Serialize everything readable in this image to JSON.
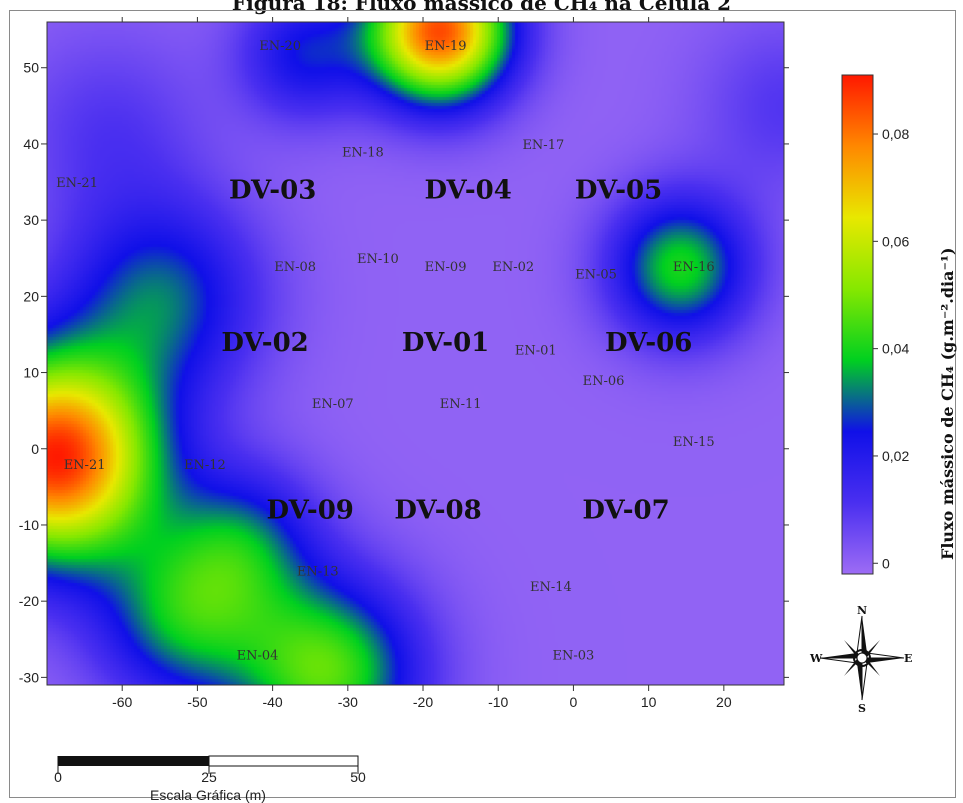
{
  "figure_title": "Figura 18: Fluxo mássico de CH₄ na Célula 2",
  "map": {
    "x_axis": {
      "ticks": [
        -60,
        -50,
        -40,
        -30,
        -20,
        -10,
        0,
        10,
        20
      ],
      "tick_labels": [
        "-60",
        "-50",
        "-40",
        "-30",
        "-20",
        "-10",
        "0",
        "10",
        "20"
      ]
    },
    "y_axis": {
      "ticks": [
        -30,
        -20,
        -10,
        0,
        10,
        20,
        30,
        40,
        50
      ],
      "tick_labels": [
        "-30",
        "-20",
        "-10",
        "0",
        "10",
        "20",
        "30",
        "40",
        "50"
      ]
    },
    "extent": {
      "x": [
        -70,
        28
      ],
      "y": [
        -31,
        56
      ]
    },
    "stations": [
      {
        "label": "EN-20",
        "x": -39,
        "y": 53
      },
      {
        "label": "EN-19",
        "x": -17,
        "y": 53
      },
      {
        "label": "EN-18",
        "x": -28,
        "y": 39
      },
      {
        "label": "EN-17",
        "x": -4,
        "y": 40
      },
      {
        "label": "EN-21",
        "x": -66,
        "y": 35
      },
      {
        "label": "EN-08",
        "x": -37,
        "y": 24
      },
      {
        "label": "EN-10",
        "x": -26,
        "y": 25
      },
      {
        "label": "EN-09",
        "x": -17,
        "y": 24
      },
      {
        "label": "EN-02",
        "x": -8,
        "y": 24
      },
      {
        "label": "EN-05",
        "x": 3,
        "y": 23
      },
      {
        "label": "EN-16",
        "x": 16,
        "y": 24
      },
      {
        "label": "EN-01",
        "x": -5,
        "y": 13
      },
      {
        "label": "EN-06",
        "x": 4,
        "y": 9
      },
      {
        "label": "EN-07",
        "x": -32,
        "y": 6
      },
      {
        "label": "EN-11",
        "x": -15,
        "y": 6
      },
      {
        "label": "EN-15",
        "x": 16,
        "y": 1
      },
      {
        "label": "EN-21",
        "x": -65,
        "y": -2
      },
      {
        "label": "EN-12",
        "x": -49,
        "y": -2
      },
      {
        "label": "EN-13",
        "x": -34,
        "y": -16
      },
      {
        "label": "EN-14",
        "x": -3,
        "y": -18
      },
      {
        "label": "EN-04",
        "x": -42,
        "y": -27
      },
      {
        "label": "EN-03",
        "x": 0,
        "y": -27
      }
    ],
    "zones": [
      {
        "label": "DV-03",
        "x": -40,
        "y": 34
      },
      {
        "label": "DV-04",
        "x": -14,
        "y": 34
      },
      {
        "label": "DV-05",
        "x": 6,
        "y": 34
      },
      {
        "label": "DV-02",
        "x": -41,
        "y": 14
      },
      {
        "label": "DV-01",
        "x": -17,
        "y": 14
      },
      {
        "label": "DV-06",
        "x": 10,
        "y": 14
      },
      {
        "label": "DV-09",
        "x": -35,
        "y": -8
      },
      {
        "label": "DV-08",
        "x": -18,
        "y": -8
      },
      {
        "label": "DV-07",
        "x": 7,
        "y": -8
      }
    ],
    "hotspots": [
      {
        "x": -69,
        "y": -1,
        "strength": 0.09,
        "spread": 9.5
      },
      {
        "x": -18,
        "y": 55,
        "strength": 0.085,
        "spread": 6.5
      },
      {
        "x": 14,
        "y": 24,
        "strength": 0.04,
        "spread": 6.5
      },
      {
        "x": -33,
        "y": -29,
        "strength": 0.046,
        "spread": 8.5
      },
      {
        "x": -55,
        "y": 20,
        "strength": 0.03,
        "spread": 9
      },
      {
        "x": -52,
        "y": -22,
        "strength": 0.034,
        "spread": 8
      },
      {
        "x": -36,
        "y": 52,
        "strength": 0.024,
        "spread": 6
      },
      {
        "x": -44,
        "y": -12,
        "strength": 0.026,
        "spread": 7
      },
      {
        "x": -62,
        "y": 42,
        "strength": 0.01,
        "spread": 9
      },
      {
        "x": 28,
        "y": 45,
        "strength": 0.01,
        "spread": 8
      }
    ]
  },
  "colorbar": {
    "title": "Fluxo mássico de CH₄ (g.m⁻².dia⁻¹)",
    "min": -0.002,
    "max": 0.091,
    "ticks": [
      0,
      0.02,
      0.04,
      0.06,
      0.08
    ],
    "tick_labels": [
      "0",
      "0,02",
      "0,04",
      "0,06",
      "0,08"
    ],
    "colors": [
      "#9d6cf5",
      "#4a2ff0",
      "#1010e8",
      "#00d020",
      "#86e800",
      "#e8e800",
      "#ff8800",
      "#ff1800"
    ]
  },
  "compass": {
    "n": "N",
    "s": "S",
    "e": "E",
    "w": "W"
  },
  "scale_bar": {
    "title": "Escala Gráfica (m)",
    "labels": [
      "0",
      "25",
      "50"
    ]
  }
}
